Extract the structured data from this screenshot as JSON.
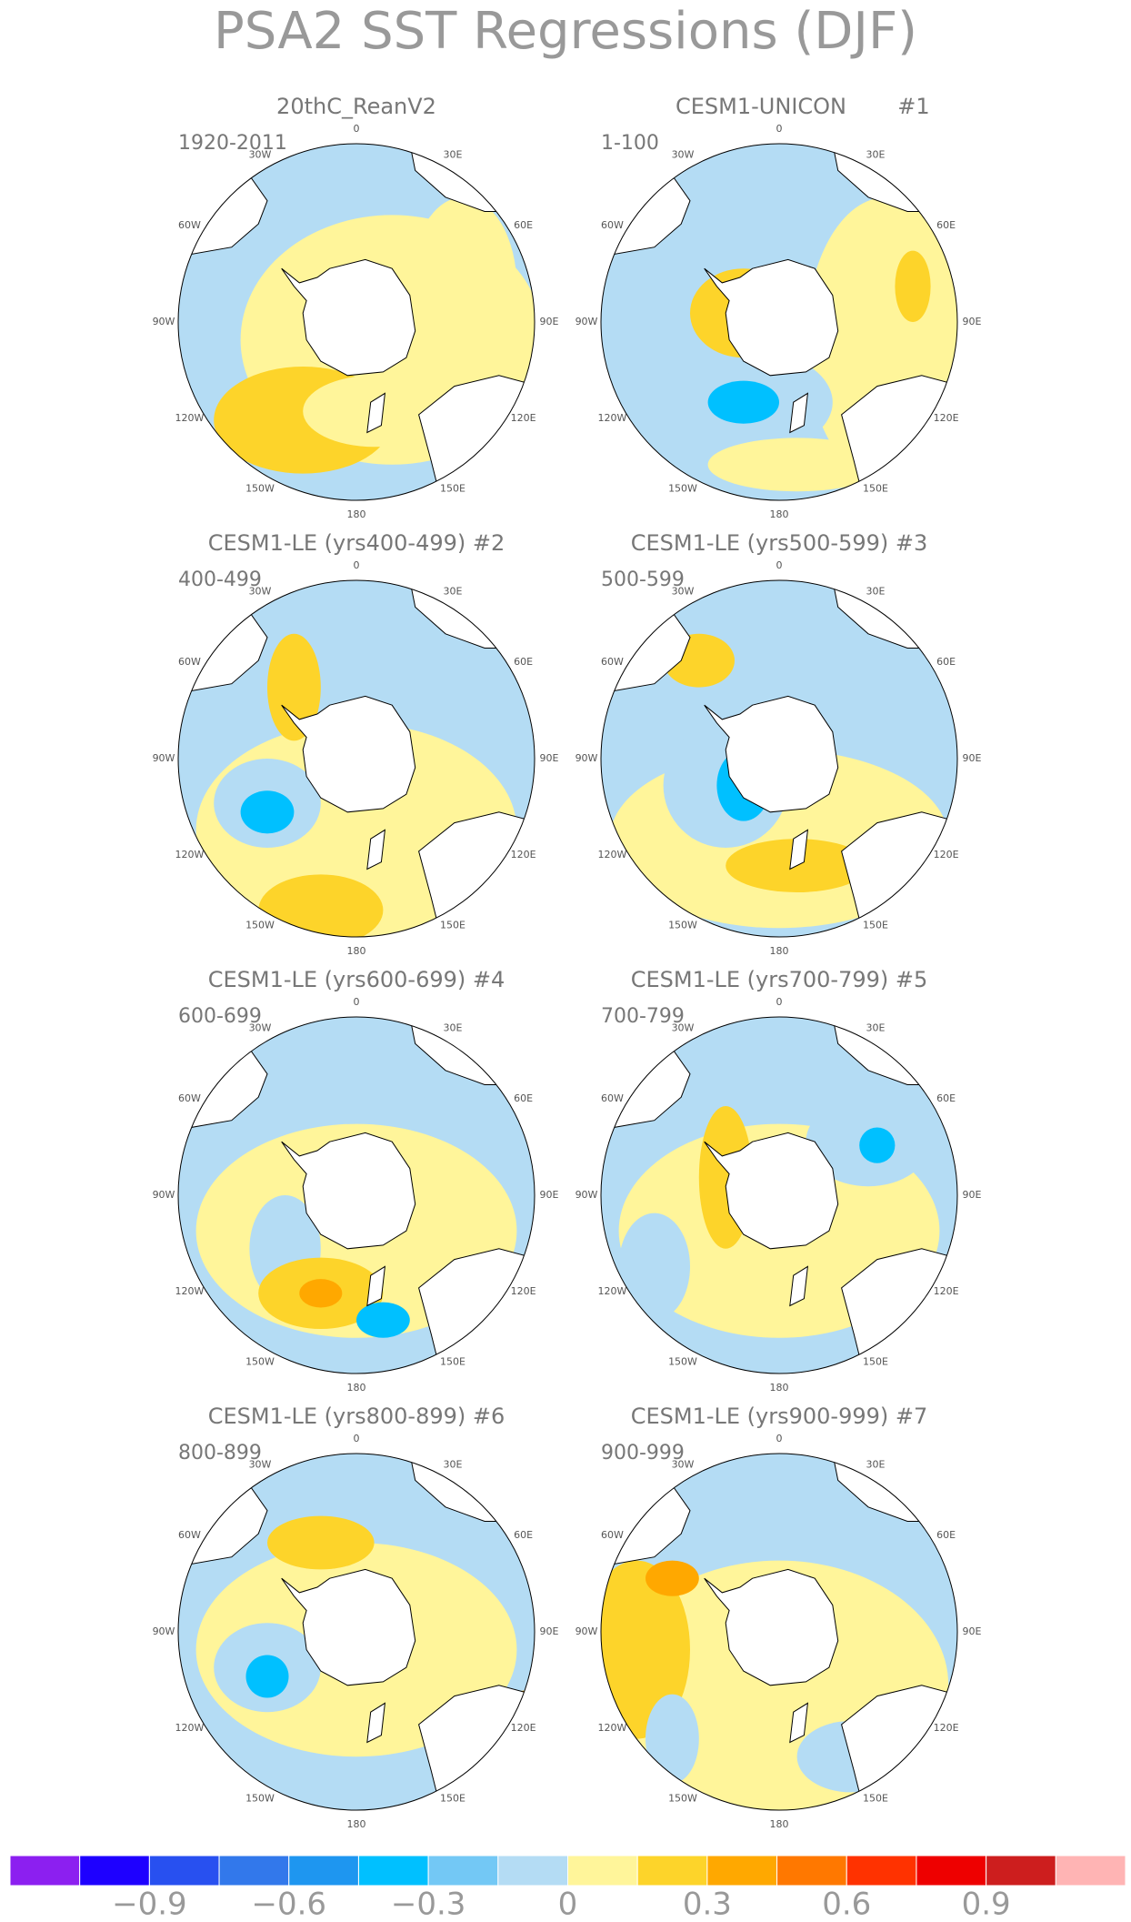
{
  "chart_data": {
    "type": "map",
    "title": "PSA2 SST Regressions (DJF)",
    "lon_labels": [
      "0",
      "30E",
      "60E",
      "90E",
      "120E",
      "150E",
      "180",
      "150W",
      "120W",
      "90W",
      "60W",
      "30W"
    ],
    "panels": [
      {
        "title": "20thC_ReanV2",
        "subtitle": "1920-2011"
      },
      {
        "title": "CESM1-UNICON",
        "tag": "#1",
        "subtitle": "1-100"
      },
      {
        "title": "CESM1-LE (yrs400-499) #2",
        "subtitle": "400-499"
      },
      {
        "title": "CESM1-LE (yrs500-599) #3",
        "subtitle": "500-599"
      },
      {
        "title": "CESM1-LE (yrs600-699) #4",
        "subtitle": "600-699"
      },
      {
        "title": "CESM1-LE (yrs700-799) #5",
        "subtitle": "700-799"
      },
      {
        "title": "CESM1-LE (yrs800-899) #6",
        "subtitle": "800-899"
      },
      {
        "title": "CESM1-LE (yrs900-999) #7",
        "subtitle": "900-999"
      }
    ],
    "colorbar": {
      "colors": [
        "#8c1ff0",
        "#1e00ff",
        "#2850f0",
        "#3278eb",
        "#1e96f0",
        "#00c0ff",
        "#73c8f5",
        "#b4dcf4",
        "#fff59a",
        "#fdd42a",
        "#ffa800",
        "#ff7800",
        "#ff3200",
        "#ee0000",
        "#cd1e1e",
        "#ffb4b4"
      ],
      "xlim": [
        -1.2,
        1.2
      ],
      "xticks": [
        {
          "value": -0.9,
          "label": "−0.9"
        },
        {
          "value": -0.6,
          "label": "−0.6"
        },
        {
          "value": -0.3,
          "label": "−0.3"
        },
        0,
        0.3,
        0.6,
        0.9
      ]
    }
  }
}
